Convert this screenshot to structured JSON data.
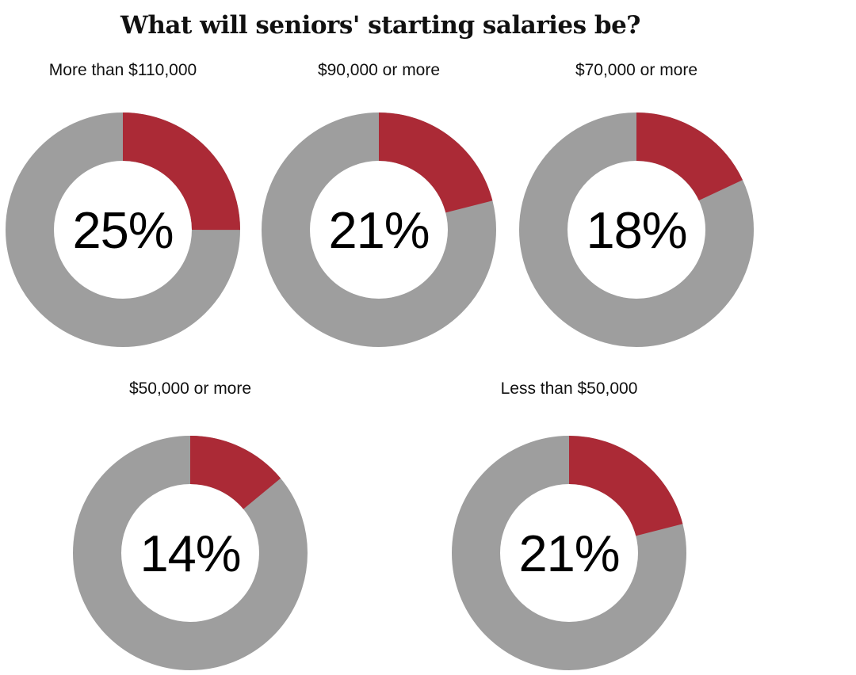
{
  "page": {
    "background": "#FFFFFF"
  },
  "chart_data": {
    "type": "pie",
    "subtype": "donut-multiples",
    "title": "What will seniors' starting salaries be?",
    "legend_position": "none",
    "start_angle": "12 o'clock, clockwise",
    "colors": {
      "segment": "#AB2A36",
      "track": "#9E9E9E",
      "hole": "#FFFFFF",
      "value_text": "#000000",
      "label_text": "#111111",
      "title_text": "#111111",
      "page_bg": "#FFFFFF"
    },
    "items": [
      {
        "label": "More than $110,000",
        "value": 25,
        "value_label": "25%"
      },
      {
        "label": "$90,000 or more",
        "value": 21,
        "value_label": "21%"
      },
      {
        "label": "$70,000 or more",
        "value": 18,
        "value_label": "18%"
      },
      {
        "label": "$50,000 or more",
        "value": 14,
        "value_label": "14%"
      },
      {
        "label": "Less than $50,000",
        "value": 21,
        "value_label": "21%"
      }
    ]
  }
}
